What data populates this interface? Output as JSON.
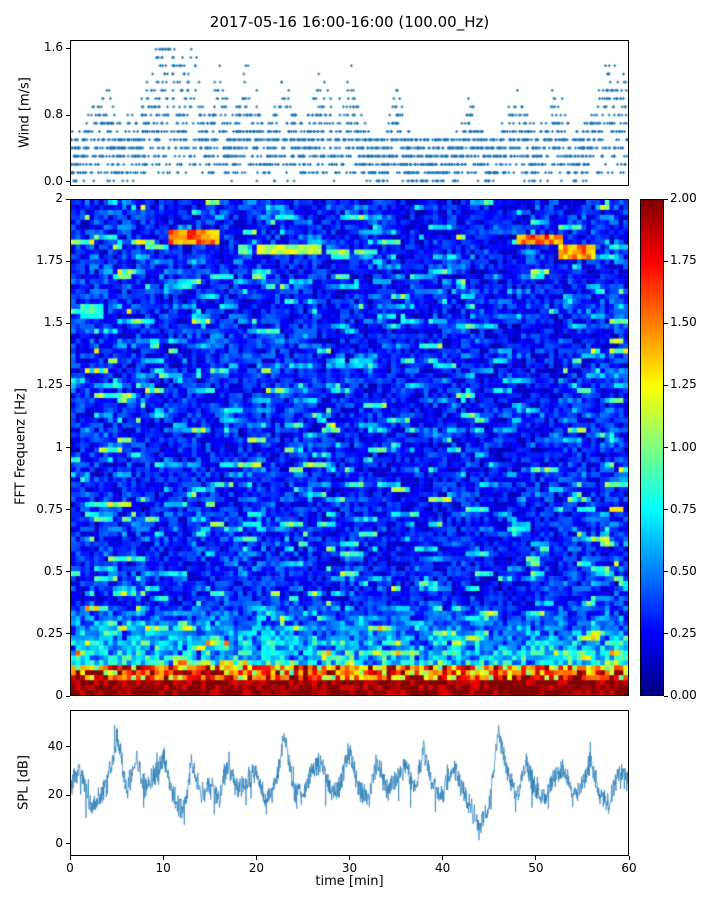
{
  "title": "2017-05-16 16:00-16:00 (100.00_Hz)",
  "xlabel": "time [min]",
  "xticks": {
    "values": [
      0,
      10,
      20,
      30,
      40,
      50,
      60
    ],
    "labels": [
      "0",
      "10",
      "20",
      "30",
      "40",
      "50",
      "60"
    ]
  },
  "chart_data": [
    {
      "type": "scatter",
      "name": "wind-speed",
      "ylabel": "Wind [m/s]",
      "xlim": [
        0,
        60
      ],
      "ylim": [
        -0.05,
        1.7
      ],
      "yticks": [
        0.0,
        0.8,
        1.6
      ],
      "ytick_labels": [
        "0.0",
        "0.8",
        "1.6"
      ],
      "marker": "plus",
      "color": "#1f77b4",
      "quantization_m_s": 0.1,
      "n_points": 2600,
      "base_range": [
        0.0,
        0.55
      ],
      "gusts": [
        {
          "t": 3.5,
          "w": 1.2,
          "peak": 0.75
        },
        {
          "t": 6.5,
          "w": 0.5,
          "peak": 0.6
        },
        {
          "t": 10.5,
          "w": 2.0,
          "peak": 1.65
        },
        {
          "t": 13.0,
          "w": 1.0,
          "peak": 1.2
        },
        {
          "t": 16.0,
          "w": 0.8,
          "peak": 0.95
        },
        {
          "t": 19.0,
          "w": 1.0,
          "peak": 1.0
        },
        {
          "t": 23.0,
          "w": 1.0,
          "peak": 1.0
        },
        {
          "t": 27.0,
          "w": 1.0,
          "peak": 0.95
        },
        {
          "t": 30.0,
          "w": 1.0,
          "peak": 1.0
        },
        {
          "t": 35.0,
          "w": 0.6,
          "peak": 0.7
        },
        {
          "t": 43.0,
          "w": 0.6,
          "peak": 0.6
        },
        {
          "t": 48.0,
          "w": 1.0,
          "peak": 0.7
        },
        {
          "t": 52.0,
          "w": 1.0,
          "peak": 0.7
        },
        {
          "t": 58.5,
          "w": 1.8,
          "peak": 1.15
        }
      ],
      "seed": 7
    },
    {
      "type": "heatmap",
      "name": "fft-spectrogram",
      "ylabel": "FFT Frequenz [Hz]",
      "xlim": [
        0,
        60
      ],
      "ylim": [
        0,
        2
      ],
      "yticks": [
        0,
        0.25,
        0.5,
        0.75,
        1,
        1.25,
        1.5,
        1.75,
        2
      ],
      "ytick_labels": [
        "0",
        "0.25",
        "0.5",
        "0.75",
        "1",
        "1.25",
        "1.5",
        "1.75",
        "2"
      ],
      "colormap": "jet",
      "clim": [
        0,
        2
      ],
      "colorbar_ticks": [
        0,
        0.25,
        0.5,
        0.75,
        1,
        1.25,
        1.5,
        1.75,
        2
      ],
      "colorbar_tick_labels": [
        "0.00",
        "0.25",
        "0.50",
        "0.75",
        "1.00",
        "1.25",
        "1.50",
        "1.75",
        "2.00"
      ],
      "time_bins": 120,
      "freq_bins": 100,
      "background_range": [
        0.1,
        0.45
      ],
      "hot_band_below_hz": 0.06,
      "hot_band_value": 1.9,
      "warm_band_below_hz": 0.4,
      "streaks_high": [
        {
          "t0": 10.5,
          "t1": 16,
          "f": 1.85,
          "value": 1.5
        },
        {
          "t0": 20,
          "t1": 27,
          "f": 1.8,
          "value": 1.15
        },
        {
          "t0": 48,
          "t1": 53,
          "f": 1.84,
          "value": 1.55
        },
        {
          "t0": 52.5,
          "t1": 56.5,
          "f": 1.79,
          "value": 1.45
        },
        {
          "t0": 1,
          "t1": 3.5,
          "f": 1.55,
          "value": 0.85
        },
        {
          "t0": 28,
          "t1": 30,
          "f": 1.78,
          "value": 0.9
        }
      ],
      "seed": 11
    },
    {
      "type": "line",
      "name": "spl",
      "ylabel": "SPL [dB]",
      "xlim": [
        0,
        60
      ],
      "ylim": [
        -5,
        55
      ],
      "yticks": [
        0,
        20,
        40
      ],
      "ytick_labels": [
        "0",
        "20",
        "40"
      ],
      "color": "#1f77b4",
      "linewidth": 0.7,
      "noise_db": 4,
      "envelope": [
        [
          0,
          24
        ],
        [
          1,
          32
        ],
        [
          2,
          16
        ],
        [
          3,
          18
        ],
        [
          4,
          26
        ],
        [
          5,
          45
        ],
        [
          6,
          22
        ],
        [
          7,
          34
        ],
        [
          8,
          22
        ],
        [
          9,
          28
        ],
        [
          10,
          36
        ],
        [
          11,
          20
        ],
        [
          12,
          13
        ],
        [
          13,
          33
        ],
        [
          14,
          20
        ],
        [
          15,
          25
        ],
        [
          16,
          18
        ],
        [
          17,
          34
        ],
        [
          18,
          22
        ],
        [
          19,
          26
        ],
        [
          20,
          30
        ],
        [
          21,
          16
        ],
        [
          22,
          24
        ],
        [
          23,
          45
        ],
        [
          24,
          22
        ],
        [
          25,
          20
        ],
        [
          26,
          30
        ],
        [
          27,
          34
        ],
        [
          28,
          20
        ],
        [
          29,
          24
        ],
        [
          30,
          39
        ],
        [
          31,
          22
        ],
        [
          32,
          18
        ],
        [
          33,
          34
        ],
        [
          34,
          22
        ],
        [
          35,
          26
        ],
        [
          36,
          33
        ],
        [
          37,
          22
        ],
        [
          38,
          39
        ],
        [
          39,
          24
        ],
        [
          40,
          20
        ],
        [
          41,
          32
        ],
        [
          42,
          25
        ],
        [
          43,
          15
        ],
        [
          44,
          7
        ],
        [
          45,
          14
        ],
        [
          46,
          47
        ],
        [
          47,
          30
        ],
        [
          48,
          20
        ],
        [
          49,
          34
        ],
        [
          50,
          22
        ],
        [
          51,
          18
        ],
        [
          52,
          26
        ],
        [
          53,
          31
        ],
        [
          54,
          20
        ],
        [
          55,
          24
        ],
        [
          56,
          34
        ],
        [
          57,
          20
        ],
        [
          58,
          16
        ],
        [
          59,
          30
        ],
        [
          60,
          26
        ]
      ],
      "seed": 23
    }
  ]
}
